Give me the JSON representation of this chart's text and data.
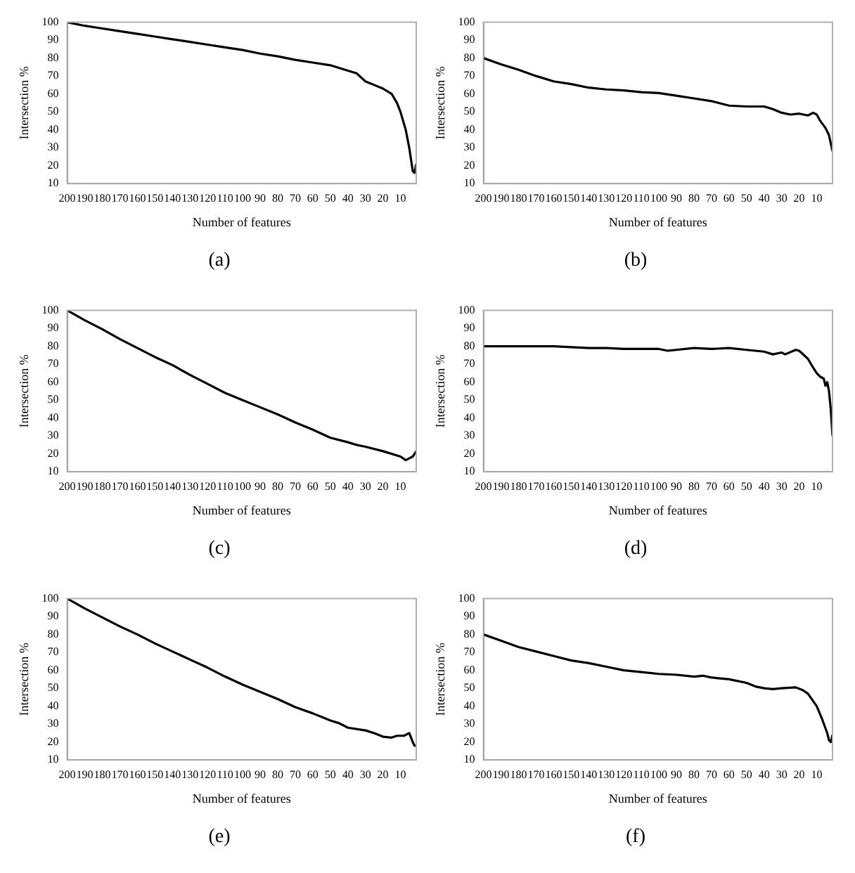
{
  "chart_data": [
    {
      "type": "line",
      "xlabel": "Number of features",
      "ylabel": "Intersection %",
      "annotations": [
        "(a)"
      ],
      "color": "#000000",
      "xlim": [
        200,
        1
      ],
      "xticks": [
        200,
        190,
        180,
        170,
        160,
        150,
        140,
        130,
        120,
        110,
        100,
        90,
        80,
        70,
        60,
        50,
        40,
        30,
        20,
        10
      ],
      "ylim": [
        10,
        100
      ],
      "yticks": [
        10,
        20,
        30,
        40,
        50,
        60,
        70,
        80,
        90,
        100
      ],
      "grid": false,
      "legend": false,
      "x": [
        200,
        190,
        180,
        170,
        160,
        150,
        140,
        130,
        120,
        110,
        100,
        90,
        80,
        70,
        60,
        50,
        40,
        35,
        30,
        25,
        20,
        15,
        12,
        10,
        7,
        5,
        3,
        2,
        1
      ],
      "values": [
        100,
        98,
        96.5,
        95,
        93.5,
        92,
        90.5,
        89,
        87.5,
        86,
        84.5,
        82.5,
        81,
        79,
        77.5,
        76,
        73,
        71.5,
        67,
        65,
        63,
        60,
        55,
        50,
        40,
        30,
        17,
        16,
        21
      ]
    },
    {
      "type": "line",
      "xlabel": "Number of features",
      "ylabel": "Intersection %",
      "annotations": [
        "(b)"
      ],
      "color": "#000000",
      "xlim": [
        200,
        1
      ],
      "xticks": [
        200,
        190,
        180,
        170,
        160,
        150,
        140,
        130,
        120,
        110,
        100,
        90,
        80,
        70,
        60,
        50,
        40,
        30,
        20,
        10
      ],
      "ylim": [
        10,
        100
      ],
      "yticks": [
        10,
        20,
        30,
        40,
        50,
        60,
        70,
        80,
        90,
        100
      ],
      "grid": false,
      "legend": false,
      "x": [
        200,
        190,
        180,
        170,
        160,
        150,
        140,
        130,
        120,
        110,
        100,
        90,
        80,
        70,
        60,
        50,
        40,
        35,
        30,
        25,
        20,
        15,
        12,
        10,
        8,
        5,
        3,
        1
      ],
      "values": [
        80,
        76.5,
        73.5,
        70,
        67,
        65.5,
        63.5,
        62.5,
        62,
        61,
        60.5,
        59,
        57.5,
        56,
        53.5,
        53,
        53,
        51.5,
        49.5,
        48.5,
        49,
        48,
        49.5,
        48.5,
        45,
        41,
        37,
        28
      ]
    },
    {
      "type": "line",
      "xlabel": "Number of features",
      "ylabel": "Intersection %",
      "annotations": [
        "(c)"
      ],
      "color": "#000000",
      "xlim": [
        200,
        1
      ],
      "xticks": [
        200,
        190,
        180,
        170,
        160,
        150,
        140,
        130,
        120,
        110,
        100,
        90,
        80,
        70,
        60,
        50,
        40,
        30,
        20,
        10
      ],
      "ylim": [
        10,
        100
      ],
      "yticks": [
        10,
        20,
        30,
        40,
        50,
        60,
        70,
        80,
        90,
        100
      ],
      "grid": false,
      "legend": false,
      "x": [
        200,
        190,
        180,
        170,
        160,
        150,
        140,
        130,
        120,
        110,
        100,
        90,
        80,
        70,
        60,
        50,
        40,
        35,
        30,
        20,
        10,
        7,
        5,
        3,
        1
      ],
      "values": [
        100,
        94.5,
        89.5,
        84,
        79,
        74,
        69.5,
        64,
        59,
        54,
        50,
        46,
        42,
        37.5,
        33.5,
        29,
        26.5,
        25,
        24,
        21.5,
        18.5,
        16.5,
        17.5,
        18.5,
        21.5
      ]
    },
    {
      "type": "line",
      "xlabel": "Number of features",
      "ylabel": "Intersection %",
      "annotations": [
        "(d)"
      ],
      "color": "#000000",
      "xlim": [
        200,
        1
      ],
      "xticks": [
        200,
        190,
        180,
        170,
        160,
        150,
        140,
        130,
        120,
        110,
        100,
        90,
        80,
        70,
        60,
        50,
        40,
        30,
        20,
        10
      ],
      "ylim": [
        10,
        100
      ],
      "yticks": [
        10,
        20,
        30,
        40,
        50,
        60,
        70,
        80,
        90,
        100
      ],
      "grid": false,
      "legend": false,
      "x": [
        200,
        160,
        150,
        140,
        130,
        120,
        100,
        95,
        80,
        70,
        60,
        50,
        40,
        35,
        30,
        28,
        22,
        20,
        15,
        12,
        10,
        8,
        6,
        5,
        4,
        3,
        2,
        1
      ],
      "values": [
        80,
        80,
        79.5,
        79,
        79,
        78.5,
        78.5,
        77.5,
        79,
        78.5,
        79,
        78,
        77,
        75.5,
        76.5,
        75.5,
        78,
        77.5,
        73,
        68,
        65,
        63,
        62,
        58,
        60,
        55,
        45,
        30
      ]
    },
    {
      "type": "line",
      "xlabel": "Number of features",
      "ylabel": "Intersection %",
      "annotations": [
        "(e)"
      ],
      "color": "#000000",
      "xlim": [
        200,
        1
      ],
      "xticks": [
        200,
        190,
        180,
        170,
        160,
        150,
        140,
        130,
        120,
        110,
        100,
        90,
        80,
        70,
        60,
        50,
        40,
        30,
        20,
        10
      ],
      "ylim": [
        10,
        100
      ],
      "yticks": [
        10,
        20,
        30,
        40,
        50,
        60,
        70,
        80,
        90,
        100
      ],
      "grid": false,
      "legend": false,
      "x": [
        200,
        190,
        180,
        170,
        160,
        150,
        140,
        130,
        120,
        110,
        100,
        90,
        80,
        70,
        60,
        50,
        45,
        40,
        30,
        25,
        20,
        15,
        12,
        8,
        5,
        3,
        2,
        1
      ],
      "values": [
        100,
        94.5,
        89.5,
        84.5,
        80,
        75,
        70.5,
        66,
        61.5,
        56.5,
        52,
        48,
        44,
        39.5,
        36,
        32,
        30.5,
        28,
        26.5,
        25,
        23,
        22.5,
        23.5,
        23.5,
        25,
        20,
        18,
        18
      ]
    },
    {
      "type": "line",
      "xlabel": "Number of features",
      "ylabel": "Intersection %",
      "annotations": [
        "(f)"
      ],
      "color": "#000000",
      "xlim": [
        200,
        1
      ],
      "xticks": [
        200,
        190,
        180,
        170,
        160,
        150,
        140,
        130,
        120,
        110,
        100,
        90,
        80,
        70,
        60,
        50,
        40,
        30,
        20,
        10
      ],
      "ylim": [
        10,
        100
      ],
      "yticks": [
        10,
        20,
        30,
        40,
        50,
        60,
        70,
        80,
        90,
        100
      ],
      "grid": false,
      "legend": false,
      "x": [
        200,
        190,
        180,
        170,
        160,
        150,
        140,
        130,
        120,
        110,
        100,
        90,
        80,
        75,
        70,
        60,
        50,
        45,
        40,
        35,
        30,
        22,
        18,
        15,
        10,
        7,
        4,
        3,
        2,
        1
      ],
      "values": [
        80,
        76.5,
        73,
        70.5,
        68,
        65.5,
        64,
        62,
        60,
        59,
        58,
        57.5,
        56.5,
        57,
        56,
        55,
        53,
        51,
        50,
        49.5,
        50,
        50.5,
        49,
        47,
        40,
        33,
        25,
        21,
        20,
        24
      ]
    }
  ]
}
